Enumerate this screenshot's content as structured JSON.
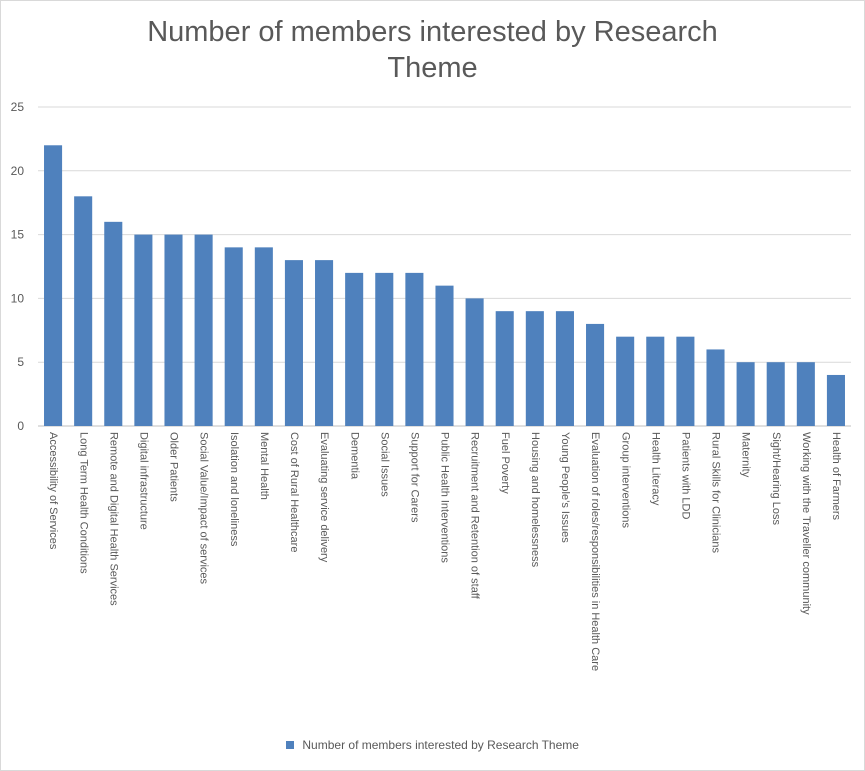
{
  "chart_data": {
    "type": "bar",
    "title_lines": [
      "Number of members interested by  Research",
      "Theme"
    ],
    "categories": [
      "Accessibility of Services",
      "Long Term Health Conditions",
      "Remote and Digital Health Services",
      "Digital infrastructure",
      "Older Patients",
      "Social Value/Impact of services",
      "Isolation and loneliness",
      "Mental Health",
      "Cost of Rural Healthcare",
      "Evaluating service delivery",
      "Dementia",
      "Social Issues",
      "Support for Carers",
      "Public Health Interventions",
      "Recruitment and Retention of staff",
      "Fuel Poverty",
      "Housing and homelessness",
      "Young People’s Issues",
      "Evaluation of roles/responsibilities in Health Care",
      "Group interventions",
      "Health Literacy",
      "Patients with LDD",
      "Rural Skills for Clinicians",
      "Maternity",
      "Sight/Hearing Loss",
      "Working with the Traveller community",
      "Health of Farmers"
    ],
    "series": [
      {
        "name": "Number of members interested by  Research Theme",
        "values": [
          22,
          18,
          16,
          15,
          15,
          15,
          14,
          14,
          13,
          13,
          12,
          12,
          12,
          11,
          10,
          9,
          9,
          9,
          8,
          7,
          7,
          7,
          6,
          5,
          5,
          5,
          4
        ],
        "color": "#4f81bd"
      }
    ],
    "ylim": [
      0,
      25
    ],
    "yticks": [
      "0",
      "5",
      "10",
      "15",
      "20",
      "25"
    ],
    "grid": true,
    "legend_position": "bottom"
  }
}
